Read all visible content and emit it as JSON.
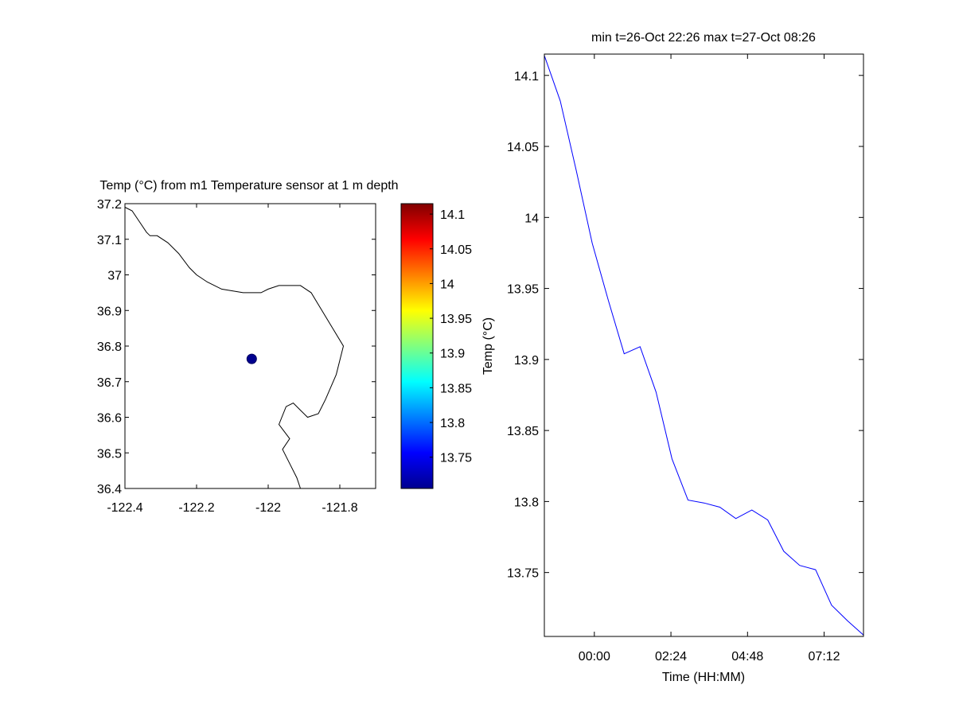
{
  "chart_data": [
    {
      "type": "scatter",
      "title": "Temp (°C) from m1 Temperature sensor at 1 m depth",
      "xlabel": "",
      "ylabel": "",
      "xlim": [
        -122.4,
        -121.7
      ],
      "ylim": [
        36.4,
        37.2
      ],
      "x_ticks": [
        "-122.4",
        "-122.2",
        "-122",
        "-121.8"
      ],
      "y_ticks": [
        "37.2",
        "37.1",
        "37",
        "36.9",
        "36.8",
        "36.7",
        "36.6",
        "36.5",
        "36.4"
      ],
      "points": [
        {
          "x": -122.046,
          "y": 36.764,
          "value": 13.71
        }
      ],
      "point_color": "#00008f",
      "coastline": [
        [
          -122.4,
          37.19
        ],
        [
          -122.38,
          37.18
        ],
        [
          -122.36,
          37.15
        ],
        [
          -122.34,
          37.12
        ],
        [
          -122.33,
          37.11
        ],
        [
          -122.31,
          37.11
        ],
        [
          -122.28,
          37.09
        ],
        [
          -122.25,
          37.06
        ],
        [
          -122.22,
          37.02
        ],
        [
          -122.2,
          37.0
        ],
        [
          -122.17,
          36.98
        ],
        [
          -122.13,
          36.96
        ],
        [
          -122.07,
          36.95
        ],
        [
          -122.02,
          36.95
        ],
        [
          -122.0,
          36.96
        ],
        [
          -121.97,
          36.97
        ],
        [
          -121.94,
          36.97
        ],
        [
          -121.91,
          36.97
        ],
        [
          -121.88,
          36.95
        ],
        [
          -121.85,
          36.9
        ],
        [
          -121.82,
          36.85
        ],
        [
          -121.79,
          36.8
        ],
        [
          -121.81,
          36.72
        ],
        [
          -121.84,
          36.65
        ],
        [
          -121.86,
          36.61
        ],
        [
          -121.89,
          36.6
        ],
        [
          -121.91,
          36.62
        ],
        [
          -121.93,
          36.64
        ],
        [
          -121.95,
          36.63
        ],
        [
          -121.97,
          36.58
        ],
        [
          -121.94,
          36.54
        ],
        [
          -121.96,
          36.51
        ],
        [
          -121.94,
          36.47
        ],
        [
          -121.92,
          36.43
        ],
        [
          -121.91,
          36.4
        ]
      ],
      "colorbar": {
        "label": "Temp (°C)",
        "ticks": [
          "14.1",
          "14.05",
          "14",
          "13.95",
          "13.9",
          "13.85",
          "13.8",
          "13.75"
        ],
        "range": [
          13.705,
          14.115
        ],
        "colormap": "jet"
      }
    },
    {
      "type": "line",
      "title": "min t=26-Oct 22:26 max t=27-Oct 08:26",
      "xlabel": "Time (HH:MM)",
      "ylabel": "",
      "xlim": [
        "26-Oct 22:26",
        "27-Oct 08:26"
      ],
      "ylim": [
        13.705,
        14.115
      ],
      "x_ticks": [
        "00:00",
        "02:24",
        "04:48",
        "07:12"
      ],
      "x_tick_times": [
        "27-Oct 00:00",
        "27-Oct 02:24",
        "27-Oct 04:48",
        "27-Oct 07:12"
      ],
      "y_ticks": [
        "14.1",
        "14.05",
        "14",
        "13.95",
        "13.9",
        "13.85",
        "13.8",
        "13.75"
      ],
      "line_color": "#0000ff",
      "series": [
        {
          "x": [
            "26-Oct 22:26",
            "26-Oct 22:56",
            "26-Oct 23:26",
            "26-Oct 23:56",
            "27-Oct 00:26",
            "27-Oct 00:56",
            "27-Oct 01:26",
            "27-Oct 01:56",
            "27-Oct 02:26",
            "27-Oct 02:56",
            "27-Oct 03:26",
            "27-Oct 03:56",
            "27-Oct 04:26",
            "27-Oct 04:56",
            "27-Oct 05:26",
            "27-Oct 05:56",
            "27-Oct 06:26",
            "27-Oct 06:56",
            "27-Oct 07:26",
            "27-Oct 07:56",
            "27-Oct 08:26"
          ],
          "values": [
            14.114,
            14.082,
            14.033,
            13.982,
            13.942,
            13.904,
            13.909,
            13.877,
            13.83,
            13.801,
            13.799,
            13.796,
            13.788,
            13.794,
            13.787,
            13.765,
            13.755,
            13.752,
            13.727,
            13.716,
            13.706
          ]
        }
      ]
    }
  ]
}
